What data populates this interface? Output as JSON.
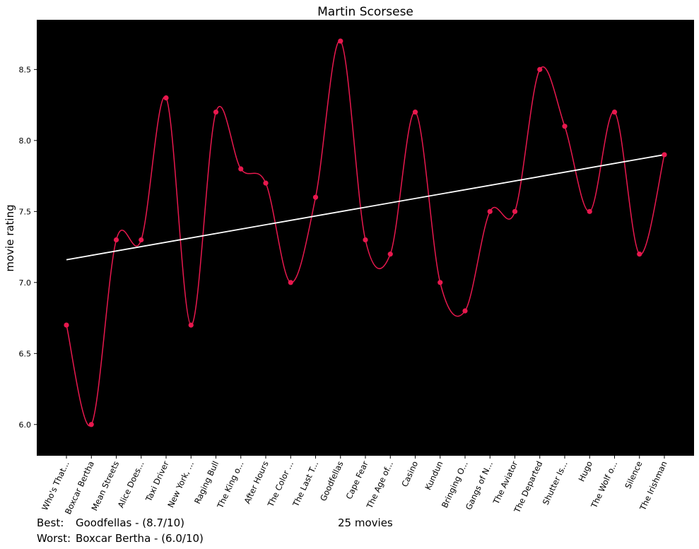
{
  "chart_data": {
    "type": "line",
    "title": "Martin Scorsese",
    "ylabel": "movie rating",
    "xlabel": "",
    "ylim": [
      5.78,
      8.85
    ],
    "yticks": [
      6.0,
      6.5,
      7.0,
      7.5,
      8.0,
      8.5
    ],
    "ytick_labels": [
      "6.0",
      "6.5",
      "7.0",
      "7.5",
      "8.0",
      "8.5"
    ],
    "categories": [
      "Who's That...",
      "Boxcar Bertha",
      "Mean Streets",
      "Alice Does...",
      "Taxi Driver",
      "New York, ...",
      "Raging Bull",
      "The King o...",
      "After Hours",
      "The Color ...",
      "The Last T...",
      "Goodfellas",
      "Cape Fear",
      "The Age of...",
      "Casino",
      "Kundun",
      "Bringing O...",
      "Gangs of N...",
      "The Aviator",
      "The Departed",
      "Shutter Is...",
      "Hugo",
      "The Wolf o...",
      "Silence",
      "The Irishman"
    ],
    "values": [
      6.7,
      6.0,
      7.3,
      7.3,
      8.3,
      6.7,
      8.2,
      7.8,
      7.7,
      7.0,
      7.6,
      8.7,
      7.3,
      7.2,
      8.2,
      7.0,
      6.8,
      7.5,
      7.5,
      8.5,
      8.1,
      7.5,
      8.2,
      7.2,
      7.9
    ],
    "trend_line": {
      "start": 7.16,
      "end": 7.9
    },
    "background": "#000000",
    "colors": {
      "series": "#e8184e",
      "trend": "#ffffff"
    },
    "grid": false,
    "legend": "none"
  },
  "footer": {
    "best_label": "Best:",
    "best_value": "Goodfellas - (8.7/10)",
    "worst_label": "Worst:",
    "worst_value": "Boxcar Bertha - (6.0/10)",
    "count": "25 movies"
  }
}
